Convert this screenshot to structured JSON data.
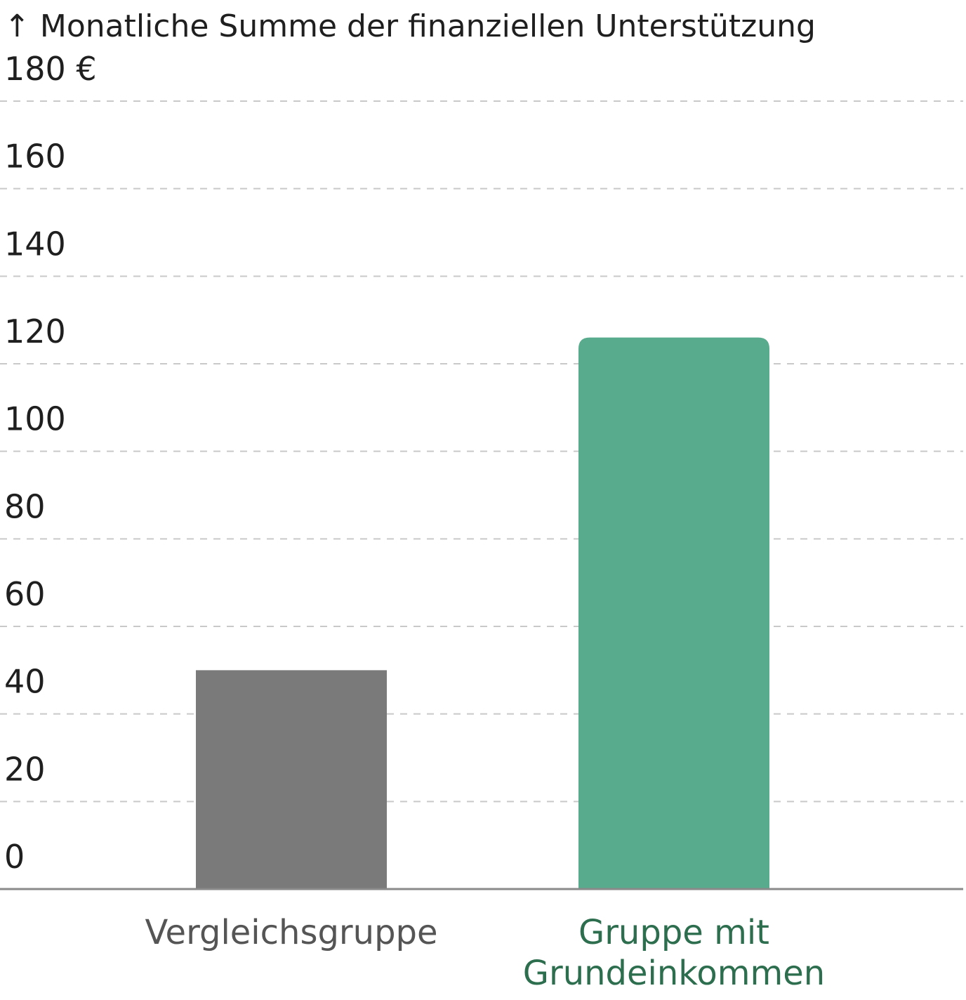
{
  "chart_data": {
    "type": "bar",
    "title": "↑ Monatliche Summe der finanziellen Unterstützung",
    "categories": [
      "Vergleichsgruppe",
      "Gruppe mit Grundeinkommen"
    ],
    "category_lines": [
      [
        "Vergleichsgruppe"
      ],
      [
        "Gruppe mit",
        "Grundeinkommen"
      ]
    ],
    "values": [
      50,
      126
    ],
    "colors": [
      "#7a7a7a",
      "#58ab8d"
    ],
    "label_colors": [
      "#555555",
      "#2d6e4f"
    ],
    "yticks": [
      "0",
      "20",
      "40",
      "60",
      "80",
      "100",
      "120",
      "140",
      "160",
      "180 €"
    ],
    "ylim": [
      0,
      180
    ],
    "grid": true
  }
}
